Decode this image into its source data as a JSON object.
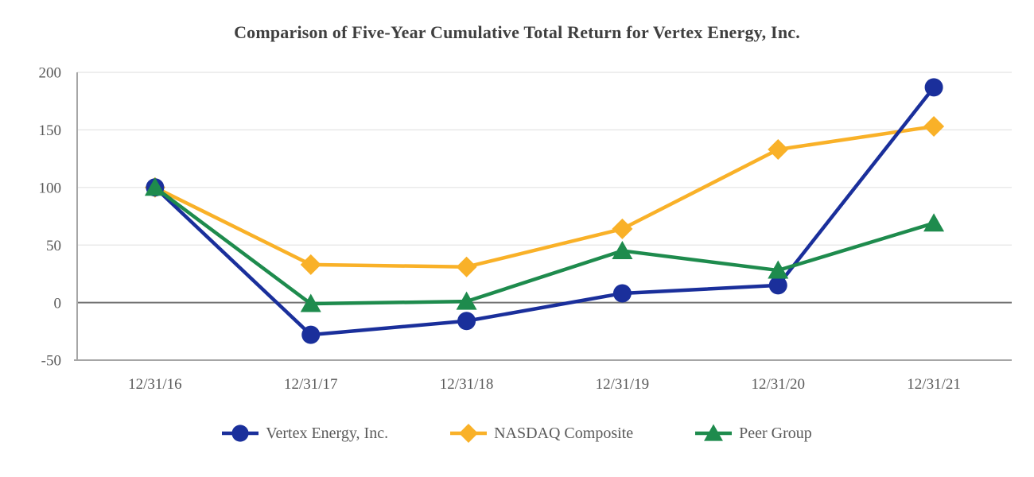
{
  "chart_data": {
    "type": "line",
    "title": "Comparison of Five-Year Cumulative Total Return for Vertex Energy, Inc.",
    "xlabel": "",
    "ylabel": "",
    "categories": [
      "12/31/16",
      "12/31/17",
      "12/31/18",
      "12/31/19",
      "12/31/20",
      "12/31/21"
    ],
    "series": [
      {
        "name": "Vertex Energy, Inc.",
        "marker": "circle",
        "color": "#1a2f9b",
        "values": [
          100,
          -28,
          -16,
          8,
          15,
          187
        ]
      },
      {
        "name": "NASDAQ Composite",
        "marker": "diamond",
        "color": "#f9b128",
        "values": [
          100,
          33,
          31,
          64,
          133,
          153
        ]
      },
      {
        "name": "Peer Group",
        "marker": "triangle",
        "color": "#1e8b4d",
        "values": [
          100,
          -1,
          1,
          45,
          28,
          69
        ]
      }
    ],
    "z_order": [
      1,
      0,
      2
    ],
    "ylim": [
      -50,
      200
    ],
    "yticks": [
      200,
      150,
      100,
      50,
      0,
      -50
    ],
    "grid": true,
    "legend_position": "bottom"
  },
  "styles": {
    "background": "#ffffff",
    "title_color": "#3f3f3f",
    "text_color": "#595959",
    "gridline_color": "#e4e4e4",
    "axis_color": "#a6a6a6",
    "zero_line_color": "#747474"
  }
}
